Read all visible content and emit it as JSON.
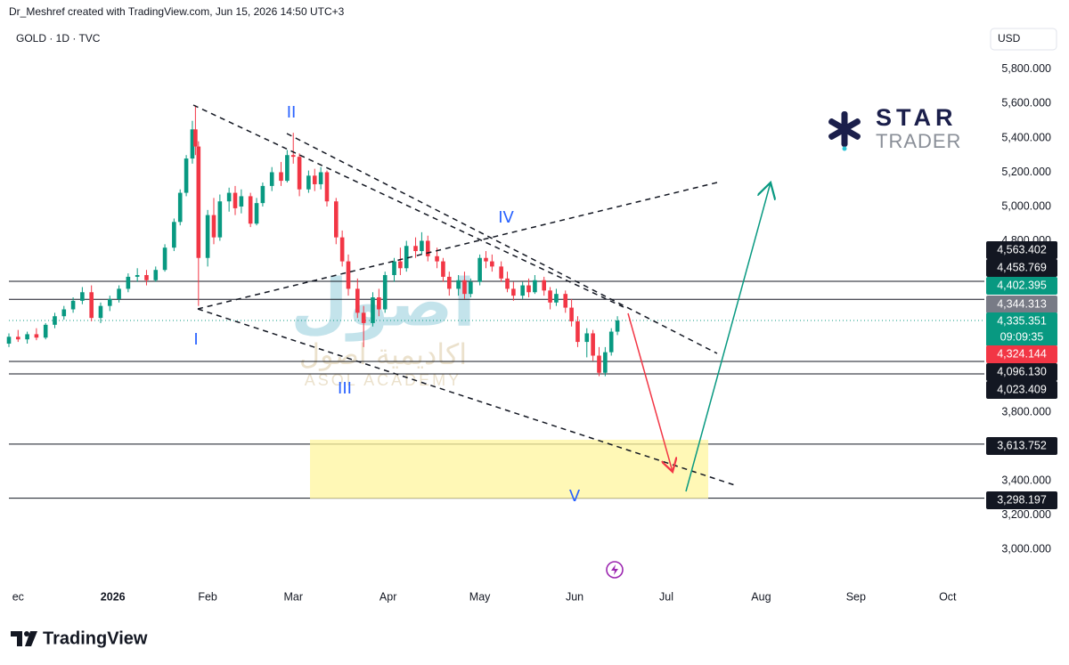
{
  "header": {
    "credit": "Dr_Meshref created with TradingView.com, Jun 15, 2026 14:50 UTC+3",
    "symbol": "GOLD · 1D · TVC",
    "currency": "USD"
  },
  "footer": {
    "brand": "TradingView"
  },
  "watermarks": {
    "star": "STAR",
    "trader": "TRADER",
    "academy": "اصول",
    "academy_sub": "اكاديمية اصول",
    "academy_en": "ASOL ACADEMY"
  },
  "chart_data": {
    "type": "candlestick",
    "up_color": "#089981",
    "down_color": "#f23645",
    "xlim": [
      -34,
      285
    ],
    "xticks": [
      {
        "value": -31,
        "label": "ec"
      },
      {
        "value": 0,
        "label": "2026",
        "bold": true
      },
      {
        "value": 31,
        "label": "Feb"
      },
      {
        "value": 59,
        "label": "Mar"
      },
      {
        "value": 90,
        "label": "Apr"
      },
      {
        "value": 120,
        "label": "May"
      },
      {
        "value": 151,
        "label": "Jun"
      },
      {
        "value": 181,
        "label": "Jul"
      },
      {
        "value": 212,
        "label": "Aug"
      },
      {
        "value": 243,
        "label": "Sep"
      },
      {
        "value": 273,
        "label": "Oct"
      }
    ],
    "ylim": [
      2803,
      6049
    ],
    "yticks": [
      {
        "value": 3000,
        "label": "3,000.000"
      },
      {
        "value": 3200,
        "label": "3,200.000"
      },
      {
        "value": 3400,
        "label": "3,400.000"
      },
      {
        "value": 3800,
        "label": "3,800.000"
      },
      {
        "value": 4800,
        "label": "4,800.000"
      },
      {
        "value": 5000,
        "label": "5,000.000"
      },
      {
        "value": 5200,
        "label": "5,200.000"
      },
      {
        "value": 5400,
        "label": "5,400.000"
      },
      {
        "value": 5600,
        "label": "5,600.000"
      },
      {
        "value": 5800,
        "label": "5,800.000"
      }
    ],
    "candles": {
      "x": [
        -34,
        -31,
        -28,
        -25,
        -22,
        -19,
        -16,
        -13,
        -10,
        -7,
        -4,
        -1,
        2,
        5,
        8,
        11,
        14,
        17,
        20,
        22,
        24,
        26,
        27,
        28,
        31,
        33,
        35,
        38,
        40,
        42,
        45,
        47,
        49,
        52,
        55,
        57,
        59,
        61,
        64,
        66,
        68,
        70,
        73,
        75,
        77,
        80,
        82,
        85,
        87,
        89,
        92,
        94,
        96,
        99,
        101,
        103,
        106,
        108,
        110,
        113,
        115,
        117,
        120,
        122,
        124,
        127,
        129,
        131,
        134,
        136,
        138,
        141,
        143,
        145,
        148,
        150,
        152,
        155,
        157,
        159,
        161,
        163,
        165
      ],
      "open": [
        4200,
        4240,
        4225,
        4255,
        4235,
        4310,
        4360,
        4400,
        4450,
        4500,
        4350,
        4420,
        4460,
        4520,
        4590,
        4600,
        4570,
        4630,
        4760,
        4910,
        5080,
        5280,
        5450,
        5350,
        4700,
        4950,
        4820,
        5030,
        5080,
        5000,
        5060,
        4900,
        5020,
        5120,
        5200,
        5150,
        5300,
        5290,
        5100,
        5180,
        5130,
        5200,
        5030,
        4820,
        4680,
        4520,
        4380,
        4320,
        4470,
        4400,
        4600,
        4680,
        4640,
        4770,
        4740,
        4800,
        4710,
        4680,
        4590,
        4520,
        4570,
        4490,
        4560,
        4700,
        4680,
        4650,
        4580,
        4520,
        4480,
        4540,
        4500,
        4570,
        4510,
        4440,
        4490,
        4410,
        4330,
        4210,
        4260,
        4130,
        4030,
        4150,
        4270
      ],
      "high": [
        4260,
        4280,
        4270,
        4290,
        4320,
        4380,
        4420,
        4470,
        4530,
        4540,
        4440,
        4480,
        4540,
        4610,
        4640,
        4630,
        4650,
        4780,
        4930,
        5100,
        5300,
        5500,
        5590,
        5380,
        4980,
        5050,
        5070,
        5110,
        5120,
        5100,
        5080,
        5050,
        5140,
        5230,
        5260,
        5330,
        5430,
        5310,
        5210,
        5220,
        5230,
        5210,
        5050,
        4860,
        4720,
        4580,
        4420,
        4500,
        4520,
        4620,
        4700,
        4760,
        4800,
        4820,
        4850,
        4830,
        4760,
        4700,
        4620,
        4600,
        4620,
        4580,
        4720,
        4740,
        4720,
        4680,
        4620,
        4560,
        4560,
        4580,
        4600,
        4590,
        4530,
        4520,
        4510,
        4460,
        4360,
        4290,
        4280,
        4180,
        4180,
        4290,
        4360
      ],
      "low": [
        4180,
        4210,
        4200,
        4220,
        4225,
        4290,
        4340,
        4380,
        4430,
        4330,
        4320,
        4390,
        4440,
        4500,
        4560,
        4540,
        4560,
        4620,
        4740,
        4890,
        5060,
        5250,
        5300,
        4420,
        4650,
        4780,
        4800,
        4970,
        4950,
        4960,
        4880,
        4890,
        5000,
        5090,
        5120,
        5140,
        5250,
        5060,
        5080,
        5090,
        5100,
        5000,
        4780,
        4650,
        4480,
        4350,
        4180,
        4300,
        4360,
        4380,
        4560,
        4600,
        4620,
        4700,
        4720,
        4680,
        4640,
        4560,
        4480,
        4480,
        4460,
        4470,
        4540,
        4640,
        4620,
        4560,
        4500,
        4450,
        4460,
        4470,
        4490,
        4480,
        4400,
        4420,
        4380,
        4300,
        4180,
        4120,
        4100,
        4010,
        4010,
        4130,
        4250
      ],
      "close": [
        4240,
        4225,
        4255,
        4235,
        4310,
        4360,
        4400,
        4450,
        4500,
        4350,
        4420,
        4460,
        4520,
        4590,
        4600,
        4570,
        4630,
        4760,
        4910,
        5080,
        5280,
        5450,
        5350,
        4700,
        4950,
        4820,
        5030,
        5080,
        4990,
        5060,
        4900,
        5020,
        5120,
        5200,
        5150,
        5300,
        5290,
        5100,
        5180,
        5130,
        5200,
        5030,
        4820,
        4680,
        4520,
        4380,
        4320,
        4470,
        4400,
        4600,
        4680,
        4640,
        4770,
        4740,
        4800,
        4710,
        4680,
        4590,
        4520,
        4570,
        4490,
        4560,
        4700,
        4680,
        4650,
        4580,
        4520,
        4480,
        4540,
        4500,
        4570,
        4510,
        4440,
        4490,
        4410,
        4330,
        4210,
        4260,
        4130,
        4030,
        4150,
        4270,
        4335
      ]
    },
    "price_levels": [
      {
        "value": 4563.402,
        "label": "4,563.402",
        "color": "#131722",
        "line": "solid"
      },
      {
        "value": 4458.769,
        "label": "4,458.769",
        "color": "#131722",
        "line": "solid"
      },
      {
        "value": 4402.395,
        "label": "4,402.395",
        "color": "#089981"
      },
      {
        "value": 4344.313,
        "label": "4,344.313",
        "color": "#787b86"
      },
      {
        "value": 4335.351,
        "label": "4,335.351",
        "color": "#089981",
        "line": "dotted",
        "countdown": "09:09:35"
      },
      {
        "value": 4324.144,
        "label": "4,324.144",
        "color": "#f23645"
      },
      {
        "value": 4096.13,
        "label": "4,096.130",
        "color": "#131722",
        "line": "solid"
      },
      {
        "value": 4023.409,
        "label": "4,023.409",
        "color": "#131722",
        "line": "solid"
      },
      {
        "value": 3613.752,
        "label": "3,613.752",
        "color": "#131722",
        "line": "solid"
      },
      {
        "value": 3298.197,
        "label": "3,298.197",
        "color": "#131722",
        "line": "solid"
      }
    ],
    "annotations": {
      "wave_1": "I",
      "wave_2": "II",
      "wave_3": "III",
      "wave_4": "IV",
      "wave_5": "V"
    }
  }
}
